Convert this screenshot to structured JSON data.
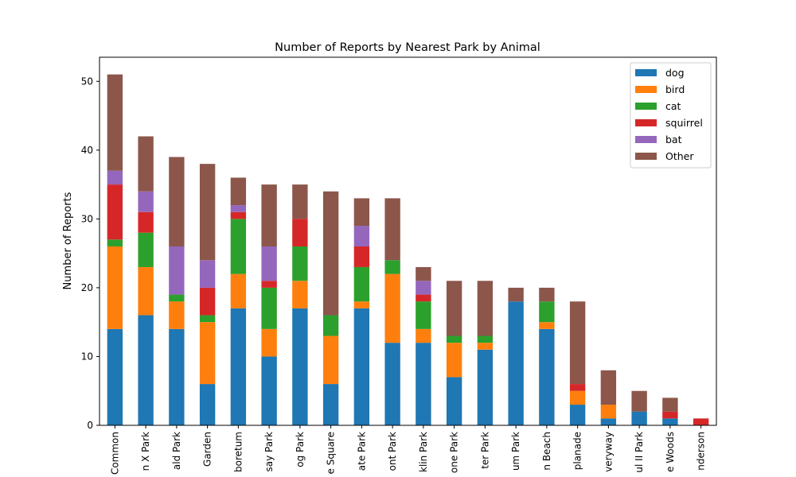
{
  "chart_data": {
    "type": "bar",
    "stacked": true,
    "title": "Number of Reports by Nearest Park by Animal",
    "xlabel": "",
    "ylabel": "Number of Reports",
    "ylim": [
      0,
      53.5
    ],
    "yticks": [
      0,
      10,
      20,
      30,
      40,
      50
    ],
    "grid": false,
    "legend_position": "top-right",
    "categories": [
      "Common",
      "n X Park",
      "ald Park",
      "Garden",
      "boretum",
      "say Park",
      "og Park",
      "e Square",
      "ate Park",
      "ont Park",
      "klin Park",
      "one Park",
      "ter Park",
      "um Park",
      "n Beach",
      "planade",
      "veryway",
      "ul II Park",
      "e Woods",
      "nderson"
    ],
    "series": [
      {
        "name": "dog",
        "color": "#1f77b4",
        "values": [
          14,
          16,
          14,
          6,
          17,
          10,
          17,
          6,
          17,
          12,
          12,
          7,
          11,
          18,
          14,
          3,
          1,
          2,
          1,
          0
        ]
      },
      {
        "name": "bird",
        "color": "#ff7f0e",
        "values": [
          12,
          7,
          4,
          9,
          5,
          4,
          4,
          7,
          1,
          10,
          2,
          5,
          1,
          0,
          1,
          2,
          2,
          0,
          0,
          0
        ]
      },
      {
        "name": "cat",
        "color": "#2ca02c",
        "values": [
          1,
          5,
          1,
          1,
          8,
          6,
          5,
          3,
          5,
          2,
          4,
          1,
          1,
          0,
          3,
          0,
          0,
          0,
          0,
          0
        ]
      },
      {
        "name": "squirrel",
        "color": "#d62728",
        "values": [
          8,
          3,
          0,
          4,
          1,
          1,
          4,
          0,
          3,
          0,
          1,
          0,
          0,
          0,
          0,
          1,
          0,
          0,
          1,
          1
        ]
      },
      {
        "name": "bat",
        "color": "#9467bd",
        "values": [
          2,
          3,
          7,
          4,
          1,
          5,
          0,
          0,
          3,
          0,
          2,
          0,
          0,
          0,
          0,
          0,
          0,
          0,
          0,
          0
        ]
      },
      {
        "name": "Other",
        "color": "#8c564b",
        "values": [
          14,
          8,
          13,
          14,
          4,
          9,
          5,
          18,
          4,
          9,
          2,
          8,
          8,
          2,
          2,
          12,
          5,
          3,
          2,
          0
        ]
      }
    ]
  }
}
